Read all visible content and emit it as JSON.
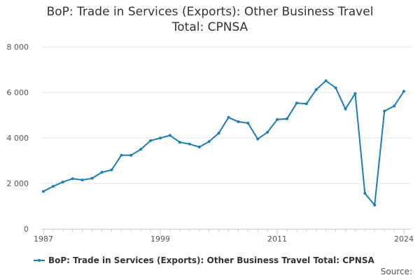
{
  "title_line1": "BoP: Trade in Services (Exports): Other Business Travel",
  "title_line2": "Total: CPNSA",
  "source_label": "Source:",
  "colors": {
    "series": "#1a7eb8",
    "grid": "#e6e6e6",
    "axis": "#cccccc"
  },
  "chart_data": {
    "type": "line",
    "title": "BoP: Trade in Services (Exports): Other Business Travel Total: CPNSA",
    "xlabel": "",
    "ylabel": "",
    "xlim": [
      1987,
      2024
    ],
    "ylim": [
      0,
      8000
    ],
    "x_ticks": [
      1987,
      1999,
      2011,
      2024
    ],
    "x_tick_labels": [
      "1987",
      "1999",
      "2011",
      "2024"
    ],
    "y_ticks": [
      0,
      2000,
      4000,
      6000,
      8000
    ],
    "y_tick_labels": [
      "0",
      "2 000",
      "4 000",
      "6 000",
      "8 000"
    ],
    "grid": "horizontal",
    "legend_position": "bottom",
    "series": [
      {
        "name": "BoP: Trade in Services (Exports): Other Business Travel Total: CPNSA",
        "x": [
          1987,
          1988,
          1989,
          1990,
          1991,
          1992,
          1993,
          1994,
          1995,
          1996,
          1997,
          1998,
          1999,
          2000,
          2001,
          2002,
          2003,
          2004,
          2005,
          2006,
          2007,
          2008,
          2009,
          2010,
          2011,
          2012,
          2013,
          2014,
          2015,
          2016,
          2017,
          2018,
          2019,
          2020,
          2021,
          2022,
          2023,
          2024
        ],
        "values": [
          1650,
          1870,
          2060,
          2210,
          2150,
          2220,
          2490,
          2590,
          3240,
          3240,
          3500,
          3880,
          3990,
          4110,
          3810,
          3730,
          3600,
          3840,
          4210,
          4900,
          4710,
          4650,
          3950,
          4250,
          4810,
          4840,
          5530,
          5500,
          6120,
          6510,
          6200,
          5270,
          5950,
          1560,
          1050,
          5180,
          5400,
          6050
        ]
      }
    ]
  }
}
